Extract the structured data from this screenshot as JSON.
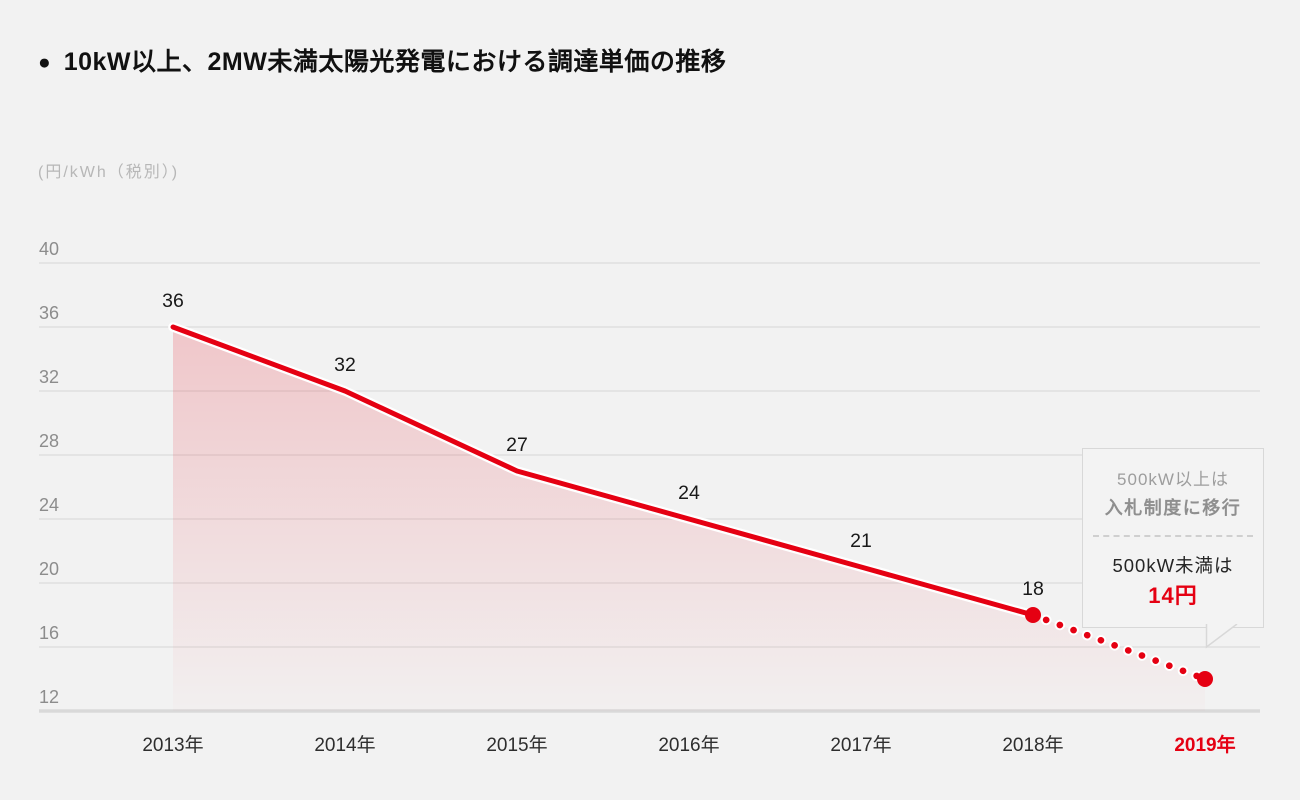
{
  "page": {
    "title_bullet": "●",
    "title": "10kW以上、2MW未満太陽光発電における調達単価の推移",
    "unit_label": "(円/kWh（税別）)"
  },
  "chart_data": {
    "type": "line",
    "title": "10kW以上、2MW未満太陽光発電における調達単価の推移",
    "ylabel": "円/kWh（税別）",
    "categories": [
      "2013年",
      "2014年",
      "2015年",
      "2016年",
      "2017年",
      "2018年",
      "2019年"
    ],
    "series": [
      {
        "name": "調達単価",
        "values": [
          36,
          32,
          27,
          24,
          21,
          18,
          14
        ],
        "point_labels": [
          "36",
          "32",
          "27",
          "24",
          "21",
          "18",
          ""
        ]
      }
    ],
    "yticks": [
      40,
      36,
      32,
      28,
      24,
      20,
      16,
      12
    ],
    "ylim": [
      12,
      40
    ],
    "grid": true,
    "legend_position": "none",
    "solid_segment_last_index": 5,
    "dotted_segment": {
      "from": "2018年",
      "to": "2019年"
    },
    "marker_indices": [
      5,
      6
    ],
    "x_axis_accent_index": 6,
    "line_color": "#e50012",
    "area_fill": "red gradient fading to transparent at bottom"
  },
  "callout": {
    "top_line1": "500kW以上は",
    "top_line2": "入札制度に移行",
    "bottom_line1": "500kW未満は",
    "bottom_value": "14円"
  },
  "colors": {
    "accent_red": "#e50012",
    "background": "#f2f2f2",
    "gridline": "#e0e0e0",
    "axis_line": "#d9d9d9",
    "tick_text": "#8c8c8c",
    "x_axis_text": "#2e2e2e",
    "muted_text": "#9d9d9d"
  }
}
